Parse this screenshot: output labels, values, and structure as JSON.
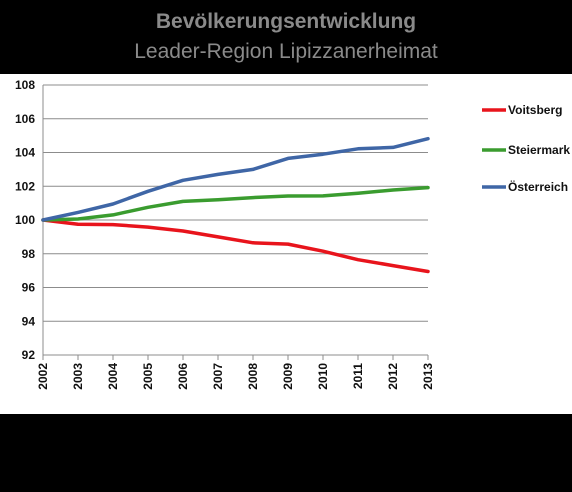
{
  "chart_data": {
    "type": "line",
    "title": "Bevölkerungsentwicklung",
    "subtitle": "Leader-Region Lipizzanerheimat",
    "xlabel": "",
    "ylabel": "",
    "x": [
      "2002",
      "2003",
      "2004",
      "2005",
      "2006",
      "2007",
      "2008",
      "2009",
      "2010",
      "2011",
      "2012",
      "2013"
    ],
    "ylim": [
      92,
      108
    ],
    "yticks": [
      "92",
      "94",
      "96",
      "98",
      "100",
      "102",
      "104",
      "106",
      "108"
    ],
    "grid": true,
    "legend_position": "right",
    "series": [
      {
        "name": "Voitsberg",
        "color": "#e8141c",
        "values": [
          100,
          99.75,
          99.73,
          99.58,
          99.35,
          99.0,
          98.65,
          98.57,
          98.15,
          97.65,
          97.3,
          96.95
        ]
      },
      {
        "name": "Steiermark",
        "color": "#3a9c2f",
        "values": [
          100,
          100.06,
          100.3,
          100.75,
          101.1,
          101.2,
          101.33,
          101.42,
          101.43,
          101.58,
          101.78,
          101.92
        ]
      },
      {
        "name": "Österreich",
        "color": "#3f66a6",
        "values": [
          100,
          100.45,
          100.95,
          101.7,
          102.35,
          102.7,
          103.0,
          103.65,
          103.9,
          104.22,
          104.3,
          104.82
        ]
      }
    ]
  }
}
